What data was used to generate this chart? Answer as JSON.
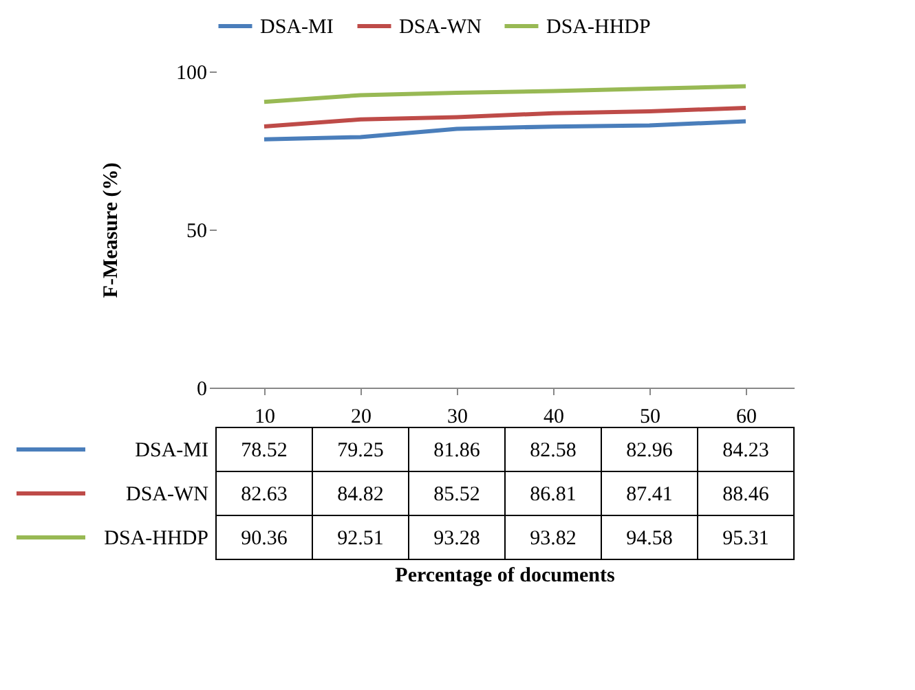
{
  "chart_data": {
    "type": "line",
    "ylabel": "F-Measure (%)",
    "annotations": [
      "Percentage of documents"
    ],
    "categories": [
      "10",
      "20",
      "30",
      "40",
      "50",
      "60"
    ],
    "series": [
      {
        "name": "DSA-MI",
        "color": "#4a7ebb",
        "values": [
          78.52,
          79.25,
          81.86,
          82.58,
          82.96,
          84.23
        ]
      },
      {
        "name": "DSA-WN",
        "color": "#be4b48",
        "values": [
          82.63,
          84.82,
          85.52,
          86.81,
          87.41,
          88.46
        ]
      },
      {
        "name": "DSA-HHDP",
        "color": "#98b954",
        "values": [
          90.36,
          92.51,
          93.28,
          93.82,
          94.58,
          95.31
        ]
      }
    ],
    "ylim": [
      0,
      100
    ],
    "yticks": [
      0,
      50,
      100
    ],
    "grid": false,
    "legend": "top",
    "data_labels": true,
    "marker": "none",
    "line_style": "solid"
  }
}
